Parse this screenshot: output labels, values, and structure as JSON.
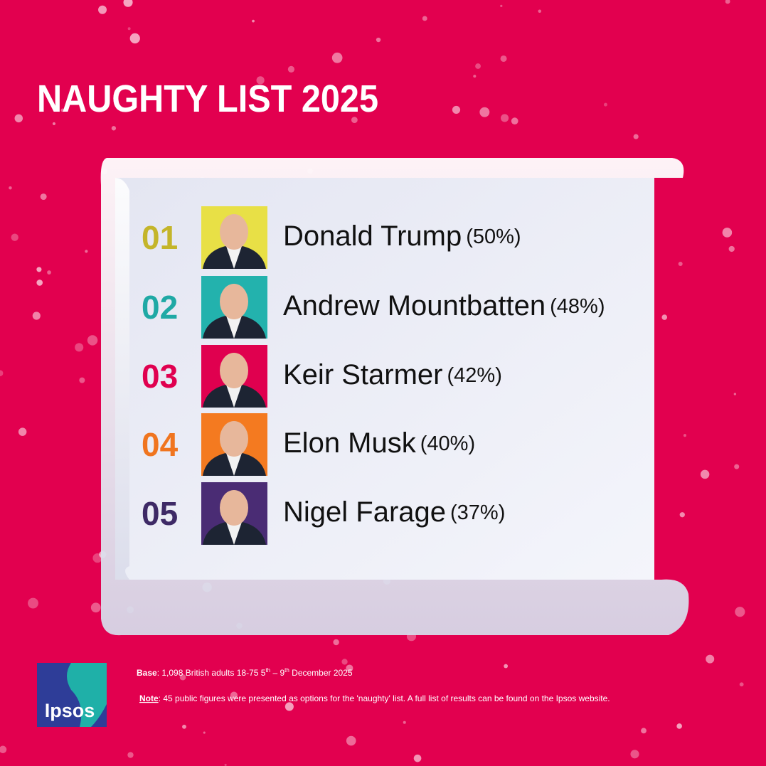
{
  "header": {
    "title": "NAUGHTY LIST 2025"
  },
  "list": [
    {
      "rank": "01",
      "name": "Donald Trump",
      "percent": "(50%)",
      "color": "#c4b52a",
      "photo_bg": "#e8e046"
    },
    {
      "rank": "02",
      "name": "Andrew Mountbatten",
      "percent": "(48%)",
      "color": "#1fa9a5",
      "photo_bg": "#23b2ad"
    },
    {
      "rank": "03",
      "name": "Keir Starmer",
      "percent": "(42%)",
      "color": "#e0004f",
      "photo_bg": "#e0004f"
    },
    {
      "rank": "04",
      "name": "Elon Musk",
      "percent": "(40%)",
      "color": "#f0751f",
      "photo_bg": "#f47a20"
    },
    {
      "rank": "05",
      "name": "Nigel Farage",
      "percent": "(37%)",
      "color": "#3e2a66",
      "photo_bg": "#4a2c74"
    }
  ],
  "footer": {
    "base": {
      "label": "Base",
      "text_1": ": 1,098 British adults 18-75 5",
      "sup_1": "th",
      "text_2": " – 9",
      "sup_2": "th",
      "text_3": "  December 2025"
    },
    "note": {
      "label": "Note",
      "text": ": 45 public figures were presented as options for the 'naughty' list. A full list of results can be found on the Ipsos website."
    },
    "logo": "Ipsos"
  }
}
